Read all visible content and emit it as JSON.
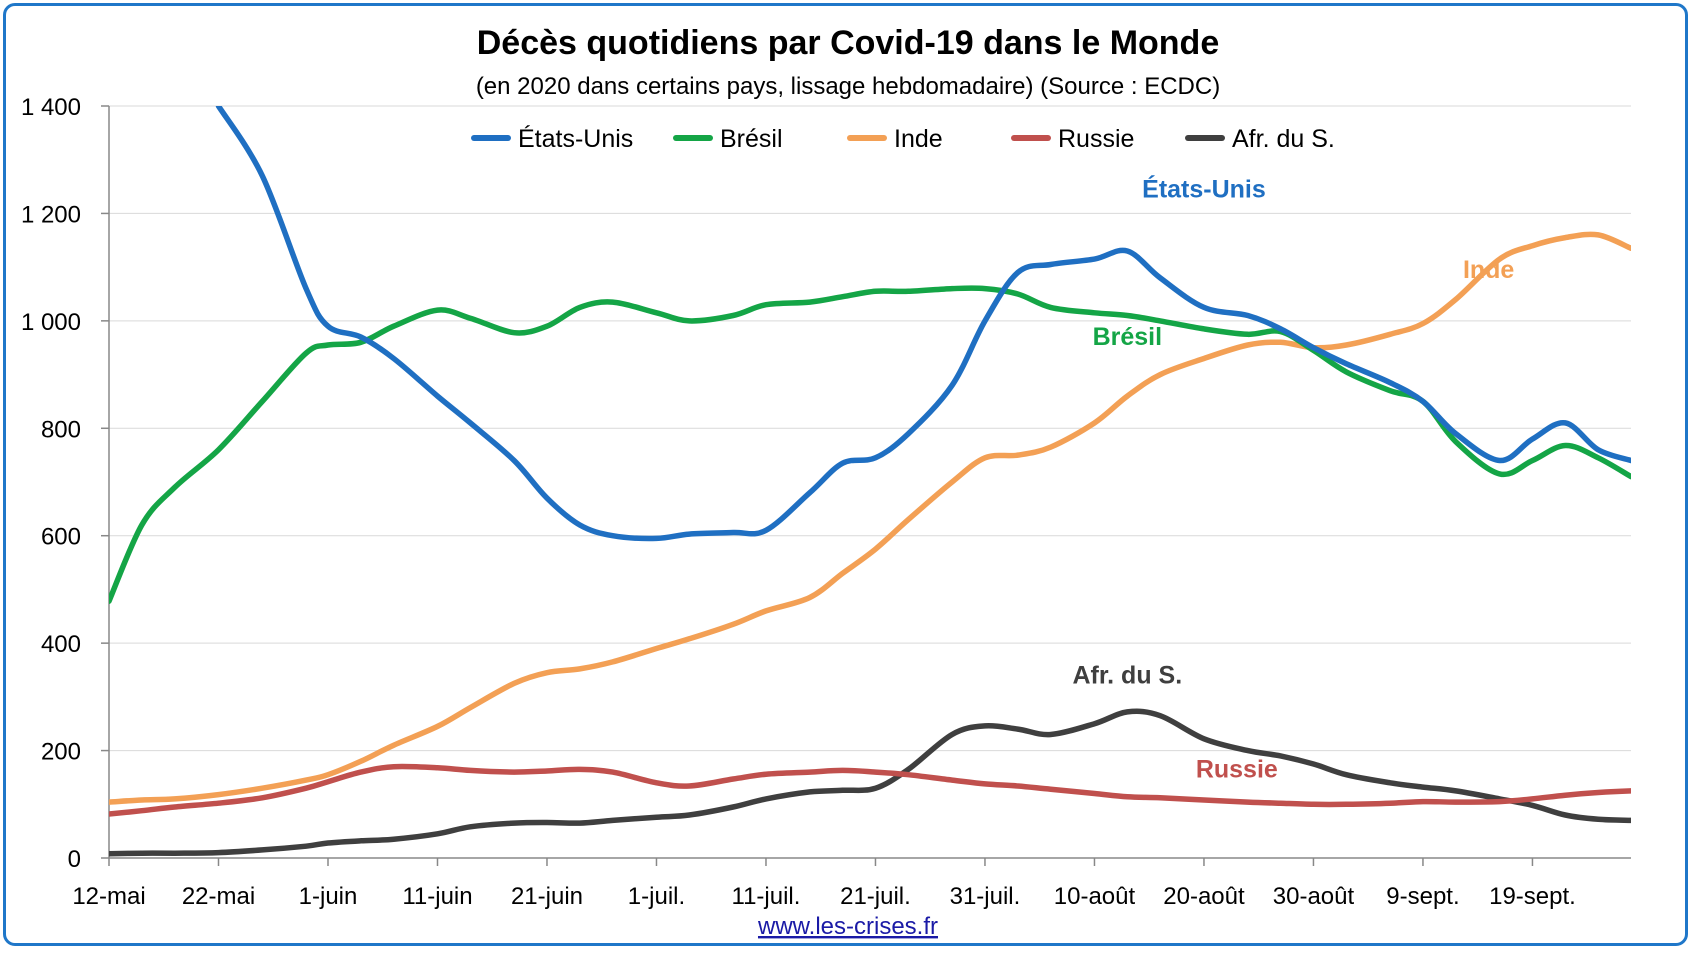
{
  "chart_data": {
    "type": "line",
    "title": "Décès quotidiens par Covid-19 dans le Monde",
    "subtitle": "(en 2020 dans certains pays, lissage hebdomadaire) (Source : ECDC)",
    "xlabel": "",
    "ylabel": "",
    "ylim": [
      0,
      1400
    ],
    "xlim": [
      "2020-05-12",
      "2020-09-28"
    ],
    "y_ticks": [
      0,
      200,
      400,
      600,
      800,
      1000,
      1200,
      1400
    ],
    "y_tick_labels": [
      "0",
      "200",
      "400",
      "600",
      "800",
      "1 000",
      "1 200",
      "1 400"
    ],
    "x_ticks": [
      {
        "date": "2020-05-12",
        "label": "12-mai"
      },
      {
        "date": "2020-05-22",
        "label": "22-mai"
      },
      {
        "date": "2020-06-01",
        "label": "1-juin"
      },
      {
        "date": "2020-06-11",
        "label": "11-juin"
      },
      {
        "date": "2020-06-21",
        "label": "21-juin"
      },
      {
        "date": "2020-07-01",
        "label": "1-juil."
      },
      {
        "date": "2020-07-11",
        "label": "11-juil."
      },
      {
        "date": "2020-07-21",
        "label": "21-juil."
      },
      {
        "date": "2020-07-31",
        "label": "31-juil."
      },
      {
        "date": "2020-08-10",
        "label": "10-août"
      },
      {
        "date": "2020-08-20",
        "label": "20-août"
      },
      {
        "date": "2020-08-30",
        "label": "30-août"
      },
      {
        "date": "2020-09-09",
        "label": "9-sept."
      },
      {
        "date": "2020-09-19",
        "label": "19-sept."
      }
    ],
    "grid": true,
    "legend_position": "top-center",
    "x": [
      "2020-05-12",
      "2020-05-15",
      "2020-05-18",
      "2020-05-22",
      "2020-05-26",
      "2020-05-30",
      "2020-06-01",
      "2020-06-04",
      "2020-06-07",
      "2020-06-11",
      "2020-06-14",
      "2020-06-18",
      "2020-06-21",
      "2020-06-24",
      "2020-06-27",
      "2020-07-01",
      "2020-07-04",
      "2020-07-08",
      "2020-07-11",
      "2020-07-15",
      "2020-07-18",
      "2020-07-21",
      "2020-07-24",
      "2020-07-28",
      "2020-07-31",
      "2020-08-03",
      "2020-08-06",
      "2020-08-10",
      "2020-08-13",
      "2020-08-16",
      "2020-08-20",
      "2020-08-24",
      "2020-08-27",
      "2020-08-30",
      "2020-09-02",
      "2020-09-06",
      "2020-09-09",
      "2020-09-12",
      "2020-09-16",
      "2020-09-19",
      "2020-09-22",
      "2020-09-25",
      "2020-09-28"
    ],
    "series": [
      {
        "name": "États-Unis",
        "color": "#1f6fc2",
        "values": [
          null,
          null,
          null,
          1400,
          1270,
          1060,
          990,
          970,
          930,
          860,
          810,
          740,
          670,
          620,
          600,
          595,
          603,
          606,
          610,
          680,
          735,
          745,
          790,
          880,
          1000,
          1090,
          1105,
          1115,
          1130,
          1080,
          1025,
          1010,
          985,
          950,
          920,
          885,
          850,
          790,
          740,
          780,
          810,
          760,
          740
        ]
      },
      {
        "name": "Brésil",
        "color": "#14a546",
        "values": [
          478,
          620,
          690,
          760,
          850,
          940,
          955,
          960,
          990,
          1020,
          1005,
          978,
          990,
          1025,
          1035,
          1015,
          1000,
          1010,
          1030,
          1035,
          1045,
          1055,
          1055,
          1060,
          1060,
          1050,
          1025,
          1015,
          1010,
          1000,
          985,
          975,
          980,
          945,
          905,
          870,
          850,
          775,
          715,
          740,
          768,
          745,
          710
        ]
      },
      {
        "name": "Inde",
        "color": "#f3a055",
        "values": [
          104,
          108,
          110,
          118,
          130,
          145,
          155,
          180,
          210,
          245,
          280,
          325,
          345,
          352,
          365,
          390,
          408,
          435,
          460,
          485,
          530,
          575,
          630,
          700,
          745,
          750,
          765,
          810,
          860,
          900,
          930,
          955,
          960,
          950,
          955,
          975,
          995,
          1040,
          1115,
          1140,
          1155,
          1160,
          1135
        ]
      },
      {
        "name": "Russie",
        "color": "#c0504d",
        "values": [
          82,
          88,
          95,
          102,
          112,
          130,
          142,
          160,
          170,
          168,
          163,
          160,
          162,
          165,
          160,
          140,
          134,
          147,
          156,
          160,
          163,
          160,
          155,
          145,
          138,
          134,
          128,
          120,
          114,
          112,
          108,
          104,
          102,
          100,
          100,
          102,
          105,
          104,
          105,
          110,
          117,
          122,
          125
        ]
      },
      {
        "name": "Afr. du S.",
        "color": "#3f3f3f",
        "values": [
          8,
          9,
          9,
          10,
          15,
          22,
          28,
          32,
          35,
          45,
          58,
          65,
          66,
          65,
          70,
          76,
          80,
          95,
          110,
          123,
          126,
          130,
          165,
          230,
          246,
          240,
          230,
          250,
          272,
          265,
          222,
          200,
          190,
          175,
          155,
          140,
          132,
          125,
          110,
          98,
          80,
          72,
          70
        ]
      }
    ],
    "annotations": [
      {
        "text": "États-Unis",
        "series": "États-Unis",
        "x": "2020-08-20",
        "y": 1230
      },
      {
        "text": "Inde",
        "series": "Inde",
        "x": "2020-09-15",
        "y": 1080
      },
      {
        "text": "Brésil",
        "series": "Brésil",
        "x": "2020-08-13",
        "y": 955
      },
      {
        "text": "Afr. du S.",
        "series": "Afr. du S.",
        "x": "2020-08-13",
        "y": 325
      },
      {
        "text": "Russie",
        "series": "Russie",
        "x": "2020-08-23",
        "y": 150
      }
    ]
  },
  "source_link": "www.les-crises.fr"
}
